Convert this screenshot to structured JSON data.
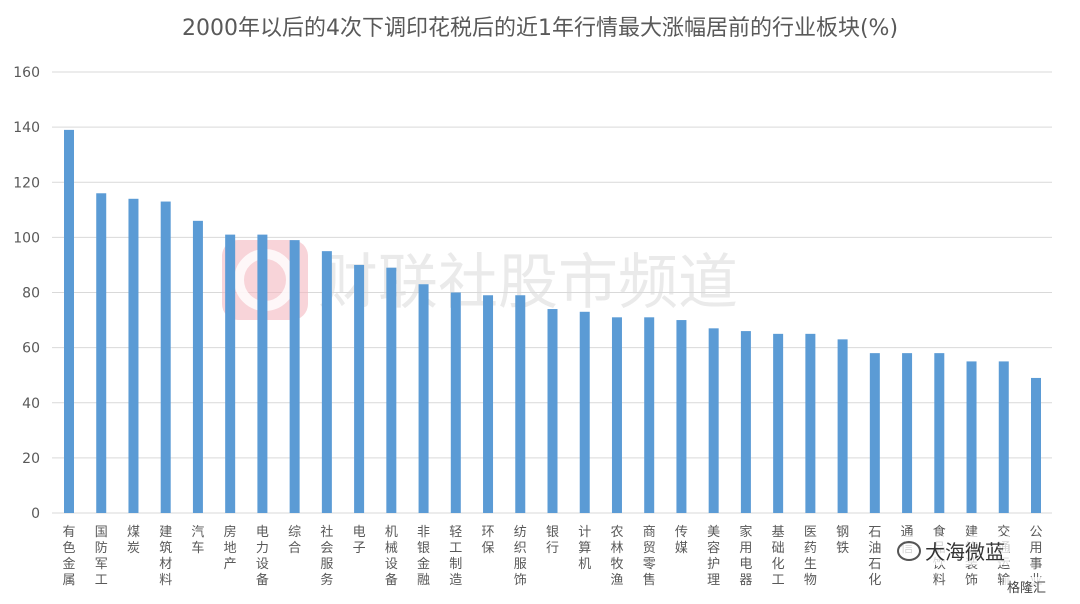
{
  "chart_data": {
    "type": "bar",
    "title": "2000年以后的4次下调印花税后的近1年行情最大涨幅居前的行业板块(%)",
    "xlabel": "",
    "ylabel": "",
    "ylim": [
      0,
      160
    ],
    "yticks": [
      0,
      20,
      40,
      60,
      80,
      100,
      120,
      140,
      160
    ],
    "grid": true,
    "legend": "none",
    "bar_color": "#5b9bd5",
    "categories": [
      "有色金属",
      "国防军工",
      "煤炭",
      "建筑材料",
      "汽车",
      "房地产",
      "电力设备",
      "综合",
      "社会服务",
      "电子",
      "机械设备",
      "非银金融",
      "轻工制造",
      "环保",
      "纺织服饰",
      "银行",
      "计算机",
      "农林牧渔",
      "商贸零售",
      "传媒",
      "美容护理",
      "家用电器",
      "基础化工",
      "医药生物",
      "钢铁",
      "石油石化",
      "通信",
      "食品饮料",
      "建筑装饰",
      "交通运输",
      "公用事业"
    ],
    "values": [
      139,
      116,
      114,
      113,
      106,
      101,
      101,
      99,
      95,
      90,
      89,
      83,
      80,
      79,
      79,
      74,
      73,
      71,
      71,
      70,
      67,
      66,
      65,
      65,
      63,
      58,
      58,
      58,
      55,
      55,
      49
    ]
  },
  "watermarks": {
    "center": "财联社股市频道",
    "wechat": "大海微蓝",
    "gelonghui": "格隆汇"
  },
  "colors": {
    "watermark_logo": "#f4b8c0",
    "watermark_text": "#d9d9d9"
  }
}
